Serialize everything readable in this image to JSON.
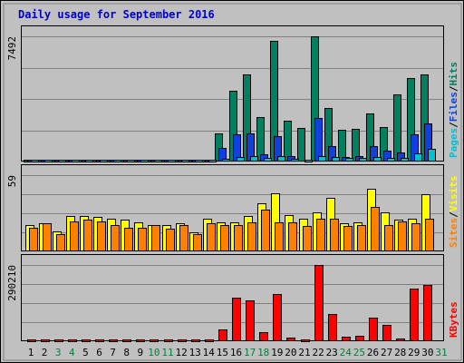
{
  "chart_data": {
    "type": "bar",
    "title": "Daily usage for September 2016",
    "categories": [
      "1",
      "2",
      "3",
      "4",
      "5",
      "6",
      "7",
      "8",
      "9",
      "10",
      "11",
      "12",
      "13",
      "14",
      "15",
      "16",
      "17",
      "18",
      "19",
      "20",
      "21",
      "22",
      "23",
      "24",
      "25",
      "26",
      "27",
      "28",
      "29",
      "30",
      "31"
    ],
    "weekend_days": [
      "3",
      "4",
      "10",
      "11",
      "17",
      "18",
      "24",
      "25",
      "31"
    ],
    "panels": [
      {
        "name": "hits-files-pages",
        "ymax_label": "7492",
        "ymax": 7492,
        "legend": [
          "Pages",
          "/",
          "Files",
          "/",
          "Hits"
        ],
        "legend_colors": [
          "#00c0d0",
          "#000000",
          "#1040e0",
          "#000000",
          "#008060"
        ],
        "series": [
          {
            "name": "Hits",
            "color": "#008060",
            "values": [
              60,
              60,
              60,
              60,
              60,
              60,
              60,
              60,
              60,
              60,
              60,
              60,
              60,
              60,
              1640,
              4200,
              5200,
              2650,
              7200,
              2380,
              1950,
              7492,
              3180,
              1870,
              1900,
              2870,
              2000,
              4000,
              4990,
              5200,
              0
            ]
          },
          {
            "name": "Files",
            "color": "#1040e0",
            "values": [
              10,
              10,
              10,
              10,
              10,
              10,
              10,
              10,
              10,
              10,
              10,
              10,
              10,
              10,
              750,
              1580,
              1640,
              400,
              1480,
              300,
              0,
              2550,
              850,
              200,
              250,
              900,
              600,
              500,
              1580,
              2230,
              0
            ]
          },
          {
            "name": "Pages",
            "color": "#00c0d0",
            "values": [
              5,
              5,
              5,
              5,
              5,
              5,
              5,
              5,
              5,
              5,
              5,
              5,
              5,
              5,
              120,
              200,
              250,
              150,
              260,
              120,
              80,
              300,
              200,
              140,
              150,
              200,
              170,
              160,
              450,
              700,
              0
            ]
          }
        ]
      },
      {
        "name": "visits-sites",
        "ymax_label": "59",
        "ymax": 59,
        "legend": [
          "Sites",
          "/",
          "Visits"
        ],
        "legend_colors": [
          "#ff8000",
          "#000000",
          "#ffff00"
        ],
        "series": [
          {
            "name": "Visits",
            "color": "#ffff00",
            "values": [
              20,
              21,
              15,
              27,
              27,
              26,
              25,
              24,
              22,
              20,
              20,
              21,
              14,
              25,
              22,
              22,
              27,
              37,
              45,
              28,
              25,
              30,
              41,
              21,
              22,
              48,
              30,
              24,
              25,
              44,
              0
            ]
          },
          {
            "name": "Sites",
            "color": "#ff8000",
            "values": [
              18,
              21,
              13,
              23,
              24,
              23,
              20,
              18,
              18,
              20,
              17,
              20,
              13,
              21,
              20,
              20,
              22,
              32,
              22,
              22,
              19,
              25,
              25,
              19,
              20,
              34,
              20,
              23,
              21,
              25,
              0
            ]
          }
        ]
      },
      {
        "name": "kbytes",
        "ymax_label": "290210",
        "ymax": 290210,
        "legend": [
          "KBytes"
        ],
        "legend_colors": [
          "#ff0000"
        ],
        "series": [
          {
            "name": "KBytes",
            "color": "#ff0000",
            "values": [
              500,
              500,
              500,
              500,
              500,
              500,
              500,
              500,
              500,
              500,
              500,
              500,
              500,
              500,
              43000,
              165000,
              155000,
              32000,
              180000,
              12000,
              4000,
              290210,
              100000,
              15000,
              18000,
              87000,
              60000,
              6000,
              200000,
              215000,
              0
            ]
          }
        ]
      }
    ]
  }
}
